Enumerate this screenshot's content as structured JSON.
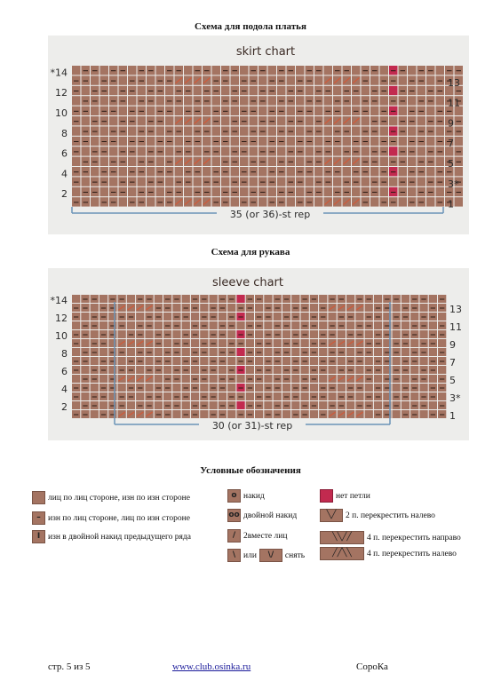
{
  "skirt": {
    "heading": "Схема для подола платья",
    "chart_title": "skirt chart",
    "left_rows": [
      "*14",
      "12",
      "10",
      "8",
      "6",
      "4",
      "2"
    ],
    "right_rows": [
      "13",
      "11",
      "9",
      "7",
      "5",
      "3*",
      "1"
    ],
    "rep": "35 (or 36)-st rep"
  },
  "sleeve": {
    "heading": "Схема для рукава",
    "chart_title": "sleeve chart",
    "left_rows": [
      "*14",
      "12",
      "10",
      "8",
      "6",
      "4",
      "2"
    ],
    "right_rows": [
      "13",
      "11",
      "9",
      "7",
      "5",
      "3*",
      "1"
    ],
    "rep": "30 (or 31)-st rep"
  },
  "legend": {
    "heading": "Условные обозначения",
    "knit": "лиц по лиц стороне, изн по изн стороне",
    "purl": "изн по лиц стороне, лиц по изн стороне",
    "purl_double_yo": "изн в двойной накид предыдущего ряда",
    "yo": "накид",
    "double_yo": "двойной  накид",
    "k2tog": "2вместе лиц",
    "or": "или",
    "slip": "снять",
    "no_stitch": "нет петли",
    "cross2": "2 п. перекрестить налево",
    "cross4_right": "4 п. перекрестить направо",
    "cross4_left": "4 п. перекрестить налево"
  },
  "footer": {
    "page": "стр. 5 из 5",
    "link": "www.club.osinka.ru",
    "author": "СороКа"
  },
  "colors": {
    "cell": "#a47462",
    "grid": "#f2eae6",
    "no_stitch": "#c22a4f",
    "rep_line": "#6b93b8"
  }
}
